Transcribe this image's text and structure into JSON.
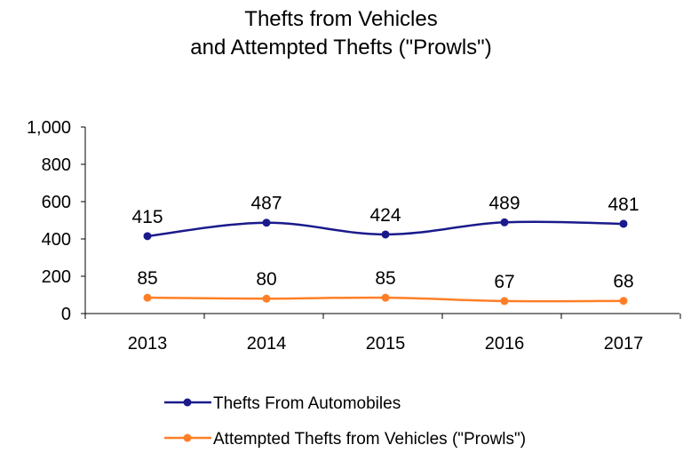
{
  "chart_data": {
    "type": "line",
    "title": [
      "Thefts from Vehicles",
      "and Attempted Thefts (\"Prowls\")"
    ],
    "categories": [
      "2013",
      "2014",
      "2015",
      "2016",
      "2017"
    ],
    "ylim": [
      0,
      1000
    ],
    "yticks": [
      0,
      200,
      400,
      600,
      800,
      1000
    ],
    "ytick_labels": [
      "0",
      "200",
      "400",
      "600",
      "800",
      "1,000"
    ],
    "grid": false,
    "legend_position": "bottom",
    "series": [
      {
        "name": "Thefts From Automobiles",
        "color": "#1a1a8c",
        "values": [
          415,
          487,
          424,
          489,
          481
        ],
        "labels": [
          "415",
          "487",
          "424",
          "489",
          "481"
        ]
      },
      {
        "name": "Attempted Thefts from Vehicles (\"Prowls\")",
        "color": "#ff7f27",
        "values": [
          85,
          80,
          85,
          67,
          68
        ],
        "labels": [
          "85",
          "80",
          "85",
          "67",
          "68"
        ]
      }
    ]
  }
}
